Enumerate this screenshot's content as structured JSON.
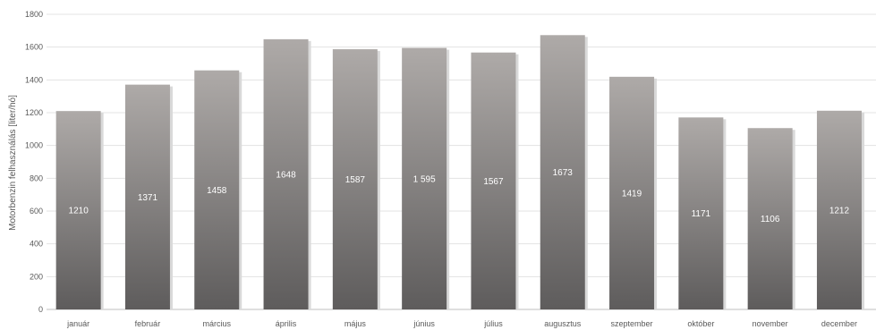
{
  "chart_data": {
    "type": "bar",
    "title": "",
    "xlabel": "",
    "ylabel": "Motorbenzin felhasználás [liter/hó]",
    "ylim": [
      0,
      1800
    ],
    "yticks": [
      0,
      200,
      400,
      600,
      800,
      1000,
      1200,
      1400,
      1600,
      1800
    ],
    "grid": true,
    "legend": "none",
    "categories": [
      "január",
      "február",
      "március",
      "április",
      "május",
      "június",
      "július",
      "augusztus",
      "szeptember",
      "október",
      "november",
      "december"
    ],
    "values": [
      1210,
      1371,
      1458,
      1648,
      1587,
      1595,
      1567,
      1673,
      1419,
      1171,
      1106,
      1212
    ],
    "data_labels": [
      "1210",
      "1371",
      "1458",
      "1648",
      "1587",
      "1 595",
      "1567",
      "1673",
      "1419",
      "1171",
      "1106",
      "1212"
    ],
    "colors": {
      "bar_top": "#aeaaa8",
      "bar_bottom": "#5e5c5c",
      "shadow": "#d9d9d9",
      "grid": "#e3e3e3"
    }
  }
}
